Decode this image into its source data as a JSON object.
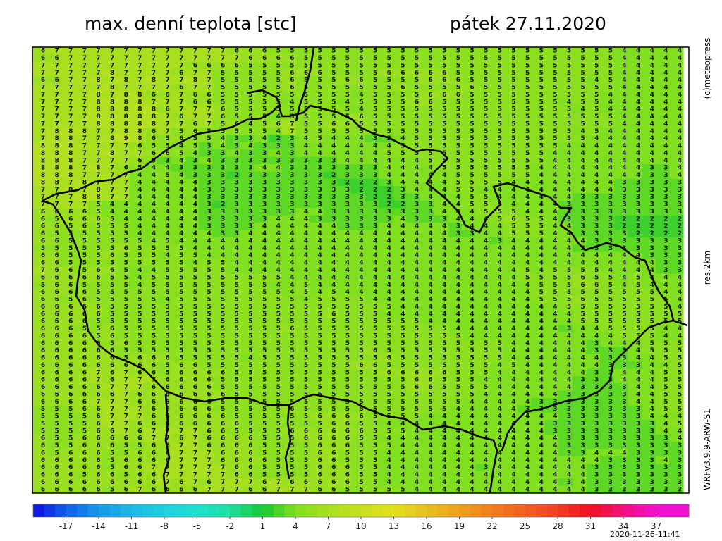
{
  "header": {
    "title": "max. denní teplota [stc]",
    "date": "pátek 27.11.2020"
  },
  "side": {
    "copyright": "(c)meteopress",
    "resolution": "res.2km",
    "model": "WRFv3.9.9-ARW-S1"
  },
  "footer": {
    "timestamp": "2020-11-26-11:41"
  },
  "colorbar": {
    "lim": [
      -20,
      40
    ],
    "ticks": [
      -17,
      -14,
      -11,
      -8,
      -5,
      -2,
      1,
      4,
      7,
      10,
      13,
      16,
      19,
      22,
      25,
      28,
      31,
      34,
      37
    ],
    "colors": [
      "#1010e0",
      "#1060e8",
      "#1898e8",
      "#20b8e8",
      "#20d0e0",
      "#20e0d0",
      "#20e0a0",
      "#18c830",
      "#80e020",
      "#a8e020",
      "#c8e020",
      "#e0e020",
      "#e8c020",
      "#f0a020",
      "#f08020",
      "#f06020",
      "#f04020",
      "#f01020",
      "#f01080",
      "#f010d0"
    ]
  },
  "map": {
    "rows": [
      "67777777777777666555555555555555555555555544444",
      "66777777777777766665555555555555555555555544444",
      "77777777777666655555555555555555555555555544444",
      "77777877776775555566655556666655555555555544444",
      "66778787877875555565556655556665555555554544444",
      "77777877776775555565555555655556555555555544444",
      "77778788667665555555555455556665555555555444444",
      "77778888777665555545554555566555555555455444444",
      "77778888867776555555555455555555555555545444444",
      "77778888876776555455555655555555555555555544444",
      "77778888877675645675566555555555555555555544444",
      "78887788675655555475555555555555555555545444444",
      "78877898656554334234544433455555555555554444444",
      "88877776554534343334444444555555555555444444444",
      "88877877665433433434444445555555555554444444444",
      "88877776534343333333334444445555555554444444444",
      "88878765443333334433333334444555555544444444334",
      "88877774454333233333323334444455555544444444334",
      "88787774444433333333332223444455554444444433333",
      "77878774444433333333333222344455444444444433333",
      "77788774444433333333333322334445544444433333333",
      "77775444444432333333333332233445554444333333333",
      "66665444444433333334433333333444555444333333333",
      "65666544444433333444333333433344456554333322222",
      "66565554444433334444443334444434445554433322222",
      "65555554444443344444444444444433445554433332222",
      "66555555454444444444444444444444434444443333333",
      "55555565555444444444444444444444444444433333333",
      "66555655545544444444444444444444444444444444333",
      "66555555555455444444444444444444444444444444433",
      "76656654455555444444444444444444444545555444433",
      "66666554555555555544444444444444444555565545444",
      "56655554555555555445444444444444444455566545444",
      "66665555555555555545454444444444444455555555544",
      "66565555545555555554555544444444444455565555554",
      "66666555555555555555555555444444444444555555554",
      "66666555555555555555565554444444444444455555555",
      "66665555555555555555555555554444444444455555555",
      "66655655555555555565555555555544444444344555544",
      "66665655555555555555555555555554444444444455544",
      "66666565555555555555555555555555554444443444555",
      "66666655555555555555555565555555554444443334555",
      "66666656665555545555555556555555554444444334455",
      "66666666656655555555555665555555545444444333445",
      "66667676656666555555555556666655544444443344455",
      "66667677766665555555555555566555444444433344455",
      "66666777666665555555555555566555544444433334455",
      "66666676666666555555555555555555444444333334455",
      "66667776666665555555555555555554444433333334455",
      "55566777666665555565555555555544444333333333455",
      "55556777666666555555666655554444444444333333444",
      "55556776666666655555566554444444444443333333345",
      "55556676777766555566666655544444444443333333344",
      "65566666776766665556666554444444444444333333334",
      "65566655667766665555666555444444444444333333333",
      "65666556667776665555665554444444444444334443333",
      "66666566667776666555665554444444444444444333343",
      "66666566777777665555666554444444344444443333333",
      "66656656677777665555666554444444444444443333333",
      "66666666676767776766666554444444444444343333333",
      "66666567666677766777665555544444444444443333333"
    ]
  }
}
